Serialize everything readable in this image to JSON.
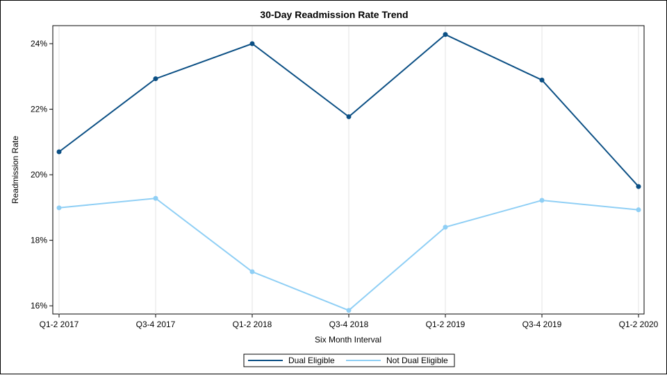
{
  "chart_data": {
    "type": "line",
    "title": "30-Day Readmission Rate Trend",
    "xlabel": "Six Month Interval",
    "ylabel": "Readmission Rate",
    "categories": [
      "Q1-2 2017",
      "Q3-4 2017",
      "Q1-2 2018",
      "Q3-4 2018",
      "Q1-2 2019",
      "Q3-4 2019",
      "Q1-2 2020"
    ],
    "y_ticks": [
      16,
      18,
      20,
      22,
      24
    ],
    "y_tick_labels": [
      "16%",
      "18%",
      "20%",
      "22%",
      "24%"
    ],
    "ylim": [
      15.75,
      24.55
    ],
    "grid": "vertical",
    "legend_position": "bottom",
    "series": [
      {
        "name": "Dual Eligible",
        "color": "#0b4f84",
        "values": [
          20.7,
          22.93,
          24.0,
          21.77,
          24.28,
          22.89,
          19.64
        ]
      },
      {
        "name": "Not Dual Eligible",
        "color": "#8fcff5",
        "values": [
          18.99,
          19.28,
          17.04,
          15.86,
          18.4,
          19.22,
          18.93
        ]
      }
    ]
  }
}
